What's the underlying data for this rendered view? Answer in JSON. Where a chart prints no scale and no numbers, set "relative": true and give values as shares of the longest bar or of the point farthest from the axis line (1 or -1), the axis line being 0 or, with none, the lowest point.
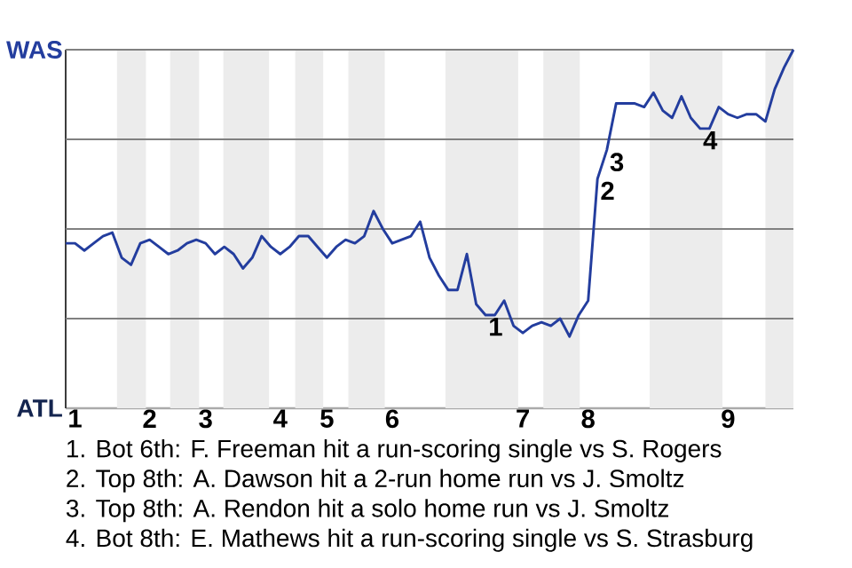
{
  "chart_data": {
    "type": "line",
    "relative": true,
    "color": "#233d9e",
    "categories": [
      null,
      "1",
      null,
      null,
      null,
      null,
      null,
      null,
      null,
      "2",
      null,
      null,
      null,
      null,
      null,
      "3",
      null,
      null,
      null,
      null,
      null,
      null,
      null,
      "4",
      null,
      null,
      null,
      null,
      "5",
      null,
      null,
      null,
      null,
      null,
      null,
      "6",
      null,
      null,
      null,
      null,
      null,
      null,
      null,
      null,
      null,
      null,
      null,
      null,
      null,
      "7",
      null,
      null,
      null,
      null,
      null,
      null,
      "8",
      null,
      null,
      null,
      null,
      null,
      null,
      null,
      null,
      null,
      null,
      null,
      null,
      null,
      null,
      "9",
      null,
      null,
      null,
      null,
      null,
      null,
      null
    ],
    "values": [
      0.46,
      0.46,
      0.44,
      0.46,
      0.48,
      0.49,
      0.42,
      0.4,
      0.46,
      0.47,
      0.45,
      0.43,
      0.44,
      0.46,
      0.47,
      0.46,
      0.43,
      0.45,
      0.43,
      0.39,
      0.42,
      0.48,
      0.45,
      0.43,
      0.45,
      0.48,
      0.48,
      0.45,
      0.42,
      0.45,
      0.47,
      0.46,
      0.48,
      0.55,
      0.5,
      0.46,
      0.47,
      0.48,
      0.52,
      0.42,
      0.37,
      0.33,
      0.33,
      0.43,
      0.29,
      0.26,
      0.26,
      0.3,
      0.23,
      0.21,
      0.23,
      0.24,
      0.23,
      0.25,
      0.2,
      0.26,
      0.3,
      0.64,
      0.72,
      0.85,
      0.85,
      0.85,
      0.84,
      0.88,
      0.83,
      0.81,
      0.87,
      0.81,
      0.78,
      0.78,
      0.84,
      0.82,
      0.81,
      0.82,
      0.82,
      0.8,
      0.89,
      0.95,
      1
    ],
    "ref_lines": [
      {
        "axis": "y",
        "value": 0.25,
        "color": "#808080"
      },
      {
        "axis": "y",
        "value": 0.5,
        "color": "#808080"
      },
      {
        "axis": "y",
        "value": 0.75,
        "color": "#808080"
      },
      {
        "axis": "y",
        "value": 1,
        "color": "#808080"
      }
    ],
    "annotations": [
      "WAS",
      "ATL",
      {
        "text": "1",
        "y": 0.26
      },
      {
        "text": "2",
        "y": 0.64
      },
      {
        "text": "3",
        "y": 0.72
      },
      {
        "text": "4",
        "y": 0.78
      },
      "1. Bot 6th: F. Freeman hit a run-scoring single vs S. Rogers",
      "2. Top 8th: A. Dawson hit a 2-run home run vs J. Smoltz",
      "3. Top 8th: A. Rendon hit a solo home run vs J. Smoltz",
      "4. Bot 8th: E. Mathews hit a run-scoring single vs S. Strasburg"
    ]
  }
}
